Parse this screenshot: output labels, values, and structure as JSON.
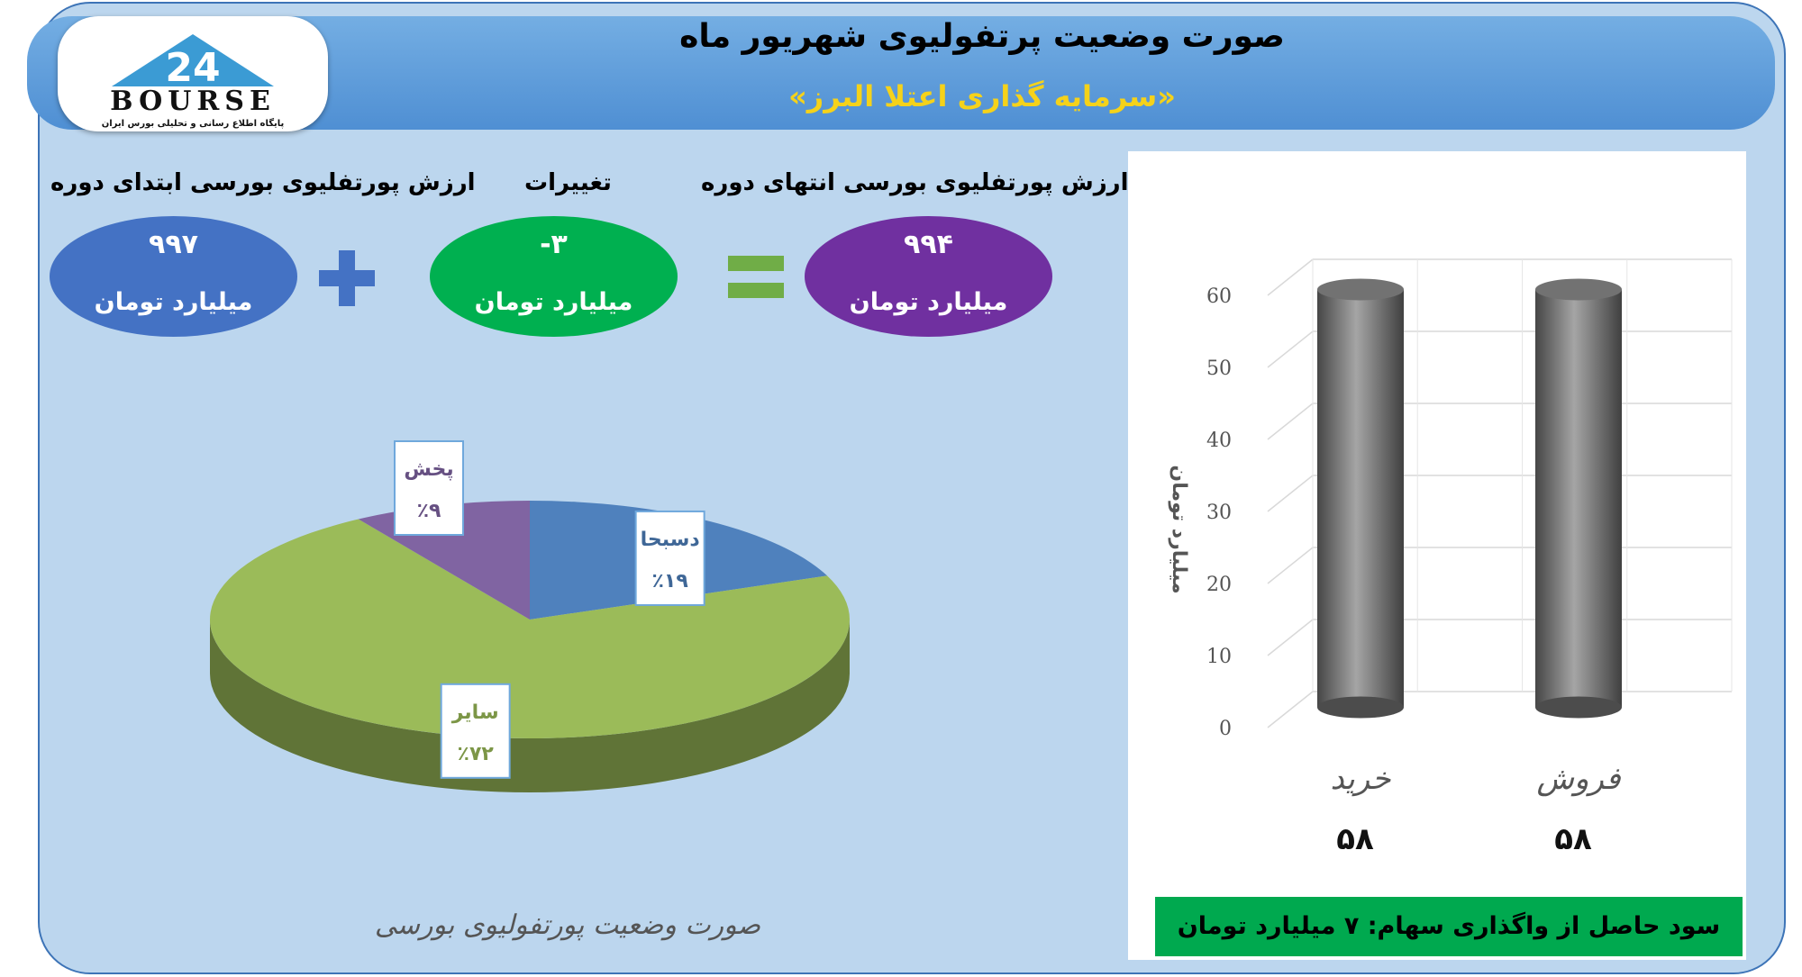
{
  "header": {
    "title": "صورت وضعیت پرتفولیوی شهریور ماه",
    "subtitle": "«سرمایه گذاری اعتلا البرز»",
    "logo_text": "BOURSE",
    "logo_number": "24",
    "logo_tagline": "پایگاه اطلاع رسانی و تحلیلی بورس ایران"
  },
  "summary": {
    "start": {
      "label": "ارزش پورتفلیوی بورسی ابتدای دوره",
      "value": "۹۹۷",
      "unit": "میلیارد تومان",
      "color": "#4472c4"
    },
    "change": {
      "label": "تغییرات",
      "value": "-۳",
      "unit": "میلیارد تومان",
      "color": "#00b050"
    },
    "end": {
      "label": "ارزش پورتفلیوی بورسی انتهای دوره",
      "value": "۹۹۴",
      "unit": "میلیارد تومان",
      "color": "#7030a0"
    },
    "plus_color": "#4472c4",
    "equals_color": "#70ad47"
  },
  "pie_caption": "صورت وضعیت پورتفولیوی بورسی",
  "profit_text": "سود حاصل از واگذاری سهام: ۷ میلیارد تومان",
  "chart_data": [
    {
      "type": "pie",
      "title": "",
      "slices": [
        {
          "name": "دسبحا",
          "value": 19,
          "label": "٪۱۹",
          "color": "#4f81bd"
        },
        {
          "name": "سایر",
          "value": 72,
          "label": "٪۷۲",
          "color": "#9bbb59"
        },
        {
          "name": "پخش",
          "value": 9,
          "label": "٪۹",
          "color": "#8064a2"
        }
      ]
    },
    {
      "type": "bar",
      "title": "",
      "ylabel": "میلیارد تومان",
      "categories": [
        "خرید",
        "فروش"
      ],
      "values": [
        58,
        58
      ],
      "value_labels": [
        "۵۸",
        "۵۸"
      ],
      "ylim": [
        0,
        60
      ],
      "yticks": [
        0,
        10,
        20,
        30,
        40,
        50,
        60
      ],
      "grid": true,
      "color": "#7f7f7f"
    }
  ]
}
